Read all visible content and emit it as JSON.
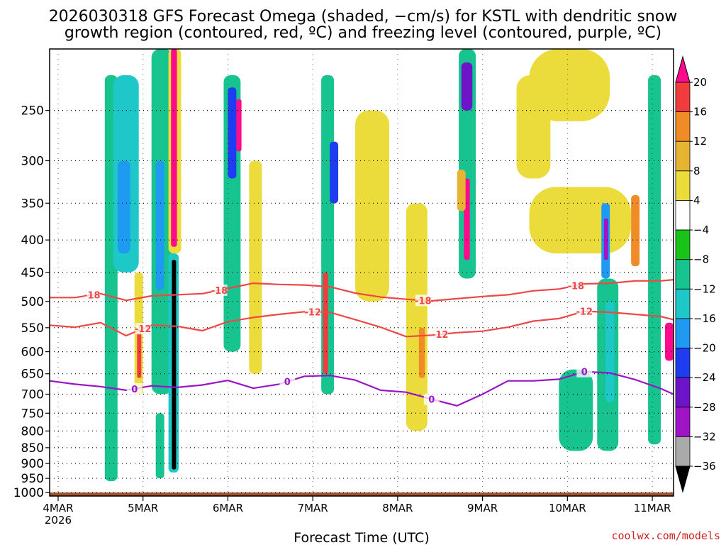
{
  "chart_data": {
    "type": "heatmap",
    "title_line1": "2026030318 GFS Forecast Omega (shaded, −cm/s) for KSTL with dendritic snow",
    "title_line2": "growth region (contoured, red, ºC) and freezing level (contoured, purple, ºC)",
    "xlabel": "Forecast Time (UTC)",
    "x_ticks": [
      {
        "label": "4MAR",
        "sub": "2026",
        "day": 0
      },
      {
        "label": "5MAR",
        "sub": "",
        "day": 1
      },
      {
        "label": "6MAR",
        "sub": "",
        "day": 2
      },
      {
        "label": "7MAR",
        "sub": "",
        "day": 3
      },
      {
        "label": "8MAR",
        "sub": "",
        "day": 4
      },
      {
        "label": "9MAR",
        "sub": "",
        "day": 5
      },
      {
        "label": "10MAR",
        "sub": "",
        "day": 6
      },
      {
        "label": "11MAR",
        "sub": "",
        "day": 7
      }
    ],
    "x_range_days": [
      -0.1,
      7.25
    ],
    "y_ticks": [
      250,
      300,
      350,
      400,
      450,
      500,
      550,
      600,
      650,
      700,
      750,
      800,
      850,
      900,
      950,
      1000
    ],
    "y_range_hpa": [
      200,
      1013
    ],
    "y_scale": "log-pressure",
    "grid": true,
    "colorbar": {
      "labels": [
        "20",
        "16",
        "12",
        "8",
        "4",
        "−4",
        "−8",
        "−12",
        "−16",
        "−20",
        "−24",
        "−28",
        "−32",
        "−36"
      ],
      "colors": [
        "#ff0a8c",
        "#f03c3c",
        "#f08c28",
        "#e6b432",
        "#ebdc3c",
        "#ffffff",
        "#17c417",
        "#17c490",
        "#1ec8c8",
        "#1e9bf0",
        "#1e3cf0",
        "#6e14c8",
        "#a014c8",
        "#aaaaaa",
        "#000000"
      ]
    },
    "omega_cells": [
      {
        "t0": 0.55,
        "t1": 0.7,
        "p0": 220,
        "p1": 960,
        "v": -8
      },
      {
        "t0": 0.65,
        "t1": 0.95,
        "p0": 220,
        "p1": 450,
        "v": -12
      },
      {
        "t0": 0.7,
        "t1": 0.85,
        "p0": 300,
        "p1": 420,
        "v": -16
      },
      {
        "t0": 0.9,
        "t1": 1.0,
        "p0": 450,
        "p1": 700,
        "v": 4
      },
      {
        "t0": 0.93,
        "t1": 0.98,
        "p0": 560,
        "p1": 660,
        "v": 16
      },
      {
        "t0": 1.1,
        "t1": 1.35,
        "p0": 200,
        "p1": 700,
        "v": -8
      },
      {
        "t0": 1.15,
        "t1": 1.25,
        "p0": 300,
        "p1": 480,
        "v": -16
      },
      {
        "t0": 1.3,
        "t1": 1.45,
        "p0": 200,
        "p1": 420,
        "v": 4
      },
      {
        "t0": 1.33,
        "t1": 1.4,
        "p0": 200,
        "p1": 410,
        "v": 20
      },
      {
        "t0": 1.3,
        "t1": 1.42,
        "p0": 420,
        "p1": 930,
        "v": -12
      },
      {
        "t0": 1.34,
        "t1": 1.39,
        "p0": 430,
        "p1": 920,
        "v": -36
      },
      {
        "t0": 1.15,
        "t1": 1.25,
        "p0": 750,
        "p1": 950,
        "v": -8
      },
      {
        "t0": 1.95,
        "t1": 2.15,
        "p0": 220,
        "p1": 600,
        "v": -8
      },
      {
        "t0": 2.0,
        "t1": 2.1,
        "p0": 230,
        "p1": 320,
        "v": -20
      },
      {
        "t0": 2.1,
        "t1": 2.16,
        "p0": 240,
        "p1": 290,
        "v": 20
      },
      {
        "t0": 2.25,
        "t1": 2.4,
        "p0": 300,
        "p1": 650,
        "v": 4
      },
      {
        "t0": 3.1,
        "t1": 3.25,
        "p0": 220,
        "p1": 700,
        "v": -8
      },
      {
        "t0": 3.2,
        "t1": 3.3,
        "p0": 280,
        "p1": 350,
        "v": -20
      },
      {
        "t0": 3.12,
        "t1": 3.18,
        "p0": 450,
        "p1": 650,
        "v": 16
      },
      {
        "t0": 3.5,
        "t1": 3.9,
        "p0": 250,
        "p1": 500,
        "v": 4
      },
      {
        "t0": 4.1,
        "t1": 4.35,
        "p0": 350,
        "p1": 800,
        "v": 4
      },
      {
        "t0": 4.25,
        "t1": 4.32,
        "p0": 550,
        "p1": 660,
        "v": 12
      },
      {
        "t0": 4.72,
        "t1": 4.92,
        "p0": 200,
        "p1": 460,
        "v": -8
      },
      {
        "t0": 4.75,
        "t1": 4.88,
        "p0": 210,
        "p1": 250,
        "v": -24
      },
      {
        "t0": 4.78,
        "t1": 4.85,
        "p0": 320,
        "p1": 430,
        "v": 20
      },
      {
        "t0": 4.7,
        "t1": 4.8,
        "p0": 310,
        "p1": 360,
        "v": 8
      },
      {
        "t0": 5.4,
        "t1": 5.8,
        "p0": 220,
        "p1": 320,
        "v": 4
      },
      {
        "t0": 5.55,
        "t1": 6.5,
        "p0": 200,
        "p1": 260,
        "v": 4
      },
      {
        "t0": 5.55,
        "t1": 6.75,
        "p0": 330,
        "p1": 420,
        "v": 4
      },
      {
        "t0": 5.9,
        "t1": 6.3,
        "p0": 640,
        "p1": 860,
        "v": -8
      },
      {
        "t0": 6.35,
        "t1": 6.6,
        "p0": 460,
        "p1": 860,
        "v": -8
      },
      {
        "t0": 6.45,
        "t1": 6.55,
        "p0": 500,
        "p1": 720,
        "v": -12
      },
      {
        "t0": 6.4,
        "t1": 6.5,
        "p0": 350,
        "p1": 460,
        "v": -16
      },
      {
        "t0": 6.43,
        "t1": 6.48,
        "p0": 370,
        "p1": 430,
        "v": -28
      },
      {
        "t0": 6.75,
        "t1": 6.85,
        "p0": 340,
        "p1": 440,
        "v": 12
      },
      {
        "t0": 6.95,
        "t1": 7.1,
        "p0": 220,
        "p1": 840,
        "v": -8
      },
      {
        "t0": 7.15,
        "t1": 7.25,
        "p0": 540,
        "p1": 620,
        "v": 20
      }
    ],
    "surface_band": {
      "p_top": 1000,
      "p_bottom": 1013,
      "color": "#a0522d"
    },
    "contours": [
      {
        "label": "-18",
        "color": "#f04646",
        "label_at": [
          0.4,
          1.9,
          4.3,
          6.1
        ],
        "t": [
          -0.1,
          0.2,
          0.5,
          0.8,
          1.1,
          1.4,
          1.7,
          2.0,
          2.3,
          2.6,
          2.9,
          3.2,
          3.5,
          3.8,
          4.1,
          4.4,
          4.7,
          5.0,
          5.3,
          5.6,
          5.9,
          6.2,
          6.5,
          6.8,
          7.1,
          7.25
        ],
        "p": [
          493,
          493,
          486,
          498,
          490,
          488,
          486,
          477,
          468,
          470,
          471,
          474,
          485,
          492,
          496,
          499,
          495,
          491,
          488,
          481,
          478,
          469,
          468,
          464,
          464,
          462
        ]
      },
      {
        "label": "-12",
        "color": "#f04646",
        "label_at": [
          1.0,
          3.0,
          4.5,
          6.2
        ],
        "t": [
          -0.1,
          0.2,
          0.5,
          0.8,
          1.1,
          1.4,
          1.7,
          2.0,
          2.3,
          2.6,
          2.9,
          3.2,
          3.5,
          3.8,
          4.1,
          4.4,
          4.7,
          5.0,
          5.3,
          5.6,
          5.9,
          6.2,
          6.5,
          6.8,
          7.1,
          7.25
        ],
        "p": [
          545,
          549,
          540,
          566,
          545,
          547,
          556,
          538,
          530,
          524,
          519,
          520,
          534,
          549,
          568,
          565,
          560,
          557,
          549,
          537,
          532,
          518,
          520,
          524,
          528,
          534
        ]
      },
      {
        "label": "0",
        "color": "#9a14c8",
        "label_at": [
          0.9,
          2.7,
          4.4,
          6.2
        ],
        "t": [
          -0.1,
          0.2,
          0.5,
          0.8,
          1.1,
          1.4,
          1.7,
          2.0,
          2.3,
          2.6,
          2.9,
          3.2,
          3.5,
          3.8,
          4.1,
          4.4,
          4.7,
          5.0,
          5.3,
          5.6,
          5.9,
          6.2,
          6.5,
          6.8,
          7.1,
          7.25
        ],
        "p": [
          667,
          675,
          681,
          690,
          679,
          683,
          677,
          666,
          685,
          675,
          656,
          654,
          665,
          690,
          695,
          713,
          730,
          700,
          667,
          667,
          663,
          645,
          648,
          664,
          686,
          700
        ]
      }
    ]
  },
  "credit": "coolwx.com/models"
}
